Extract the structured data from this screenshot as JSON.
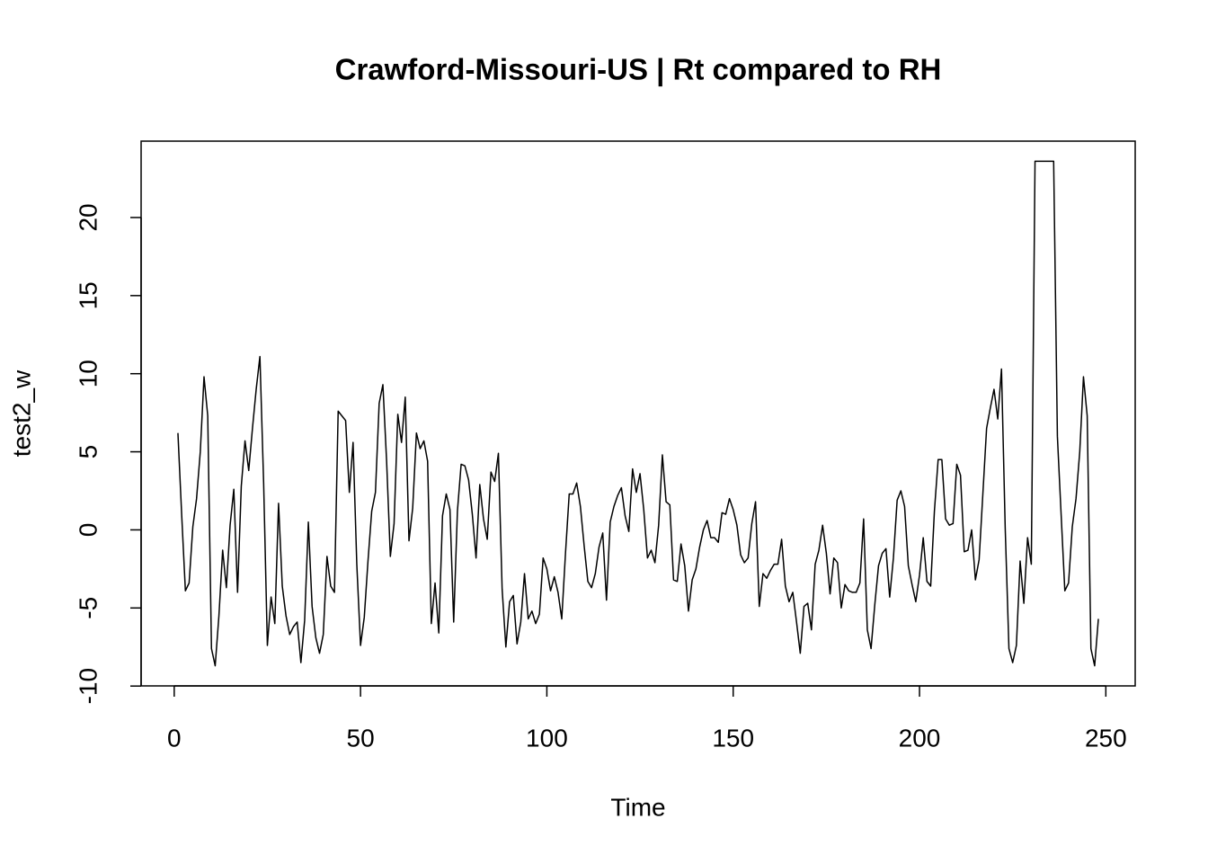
{
  "chart_data": {
    "type": "line",
    "title": "Crawford-Missouri-US | Rt compared to RH",
    "x_label": "Time",
    "y_label": "test2_w",
    "x": [
      1,
      2,
      3,
      4,
      5,
      6,
      7,
      8,
      9,
      10,
      11,
      12,
      13,
      14,
      15,
      16,
      17,
      18,
      19,
      20,
      21,
      22,
      23,
      24,
      25,
      26,
      27,
      28,
      29,
      30,
      31,
      32,
      33,
      34,
      35,
      36,
      37,
      38,
      39,
      40,
      41,
      42,
      43,
      44,
      45,
      46,
      47,
      48,
      49,
      50,
      51,
      52,
      53,
      54,
      55,
      56,
      57,
      58,
      59,
      60,
      61,
      62,
      63,
      64,
      65,
      66,
      67,
      68,
      69,
      70,
      71,
      72,
      73,
      74,
      75,
      76,
      77,
      78,
      79,
      80,
      81,
      82,
      83,
      84,
      85,
      86,
      87,
      88,
      89,
      90,
      91,
      92,
      93,
      94,
      95,
      96,
      97,
      98,
      99,
      100,
      101,
      102,
      103,
      104,
      105,
      106,
      107,
      108,
      109,
      110,
      111,
      112,
      113,
      114,
      115,
      116,
      117,
      118,
      119,
      120,
      121,
      122,
      123,
      124,
      125,
      126,
      127,
      128,
      129,
      130,
      131,
      132,
      133,
      134,
      135,
      136,
      137,
      138,
      139,
      140,
      141,
      142,
      143,
      144,
      145,
      146,
      147,
      148,
      149,
      150,
      151,
      152,
      153,
      154,
      155,
      156,
      157,
      158,
      159,
      160,
      161,
      162,
      163,
      164,
      165,
      166,
      167,
      168,
      169,
      170,
      171,
      172,
      173,
      174,
      175,
      176,
      177,
      178,
      179,
      180,
      181,
      182,
      183,
      184,
      185,
      186,
      187,
      188,
      189,
      190,
      191,
      192,
      193,
      194,
      195,
      196,
      197,
      198,
      199,
      200,
      201,
      202,
      203,
      204,
      205,
      206,
      207,
      208,
      209,
      210,
      211,
      212,
      213,
      214,
      215,
      216,
      217,
      218,
      219,
      220,
      221,
      222,
      223,
      224,
      225,
      226,
      227,
      228,
      229,
      230,
      231,
      232,
      233,
      234,
      235,
      236,
      237,
      238,
      239,
      240,
      241,
      242,
      243,
      244,
      245,
      246,
      247,
      248
    ],
    "series": [
      {
        "name": "test2_w",
        "color": "#000000",
        "values": [
          6.2,
          1,
          -3.9,
          -3.4,
          0.2,
          2,
          5,
          9.8,
          7.3,
          -7.6,
          -8.7,
          -5.5,
          -1.3,
          -3.7,
          0.3,
          2.6,
          -4,
          2.8,
          5.7,
          3.8,
          6.5,
          9,
          11.1,
          3,
          -7.4,
          -4.3,
          -6,
          1.7,
          -3.6,
          -5.5,
          -6.7,
          -6.2,
          -5.9,
          -8.5,
          -5.8,
          0.5,
          -4.9,
          -6.9,
          -7.9,
          -6.7,
          -1.7,
          -3.6,
          -4,
          7.6,
          7.3,
          7,
          2.4,
          5.6,
          -2.2,
          -7.4,
          -5.6,
          -2,
          1.2,
          2.4,
          8.1,
          9.3,
          4.4,
          -1.7,
          0.4,
          7.4,
          5.6,
          8.5,
          -0.7,
          1.4,
          6.2,
          5.2,
          5.7,
          4.4,
          -6,
          -3.4,
          -6.6,
          0.9,
          2.3,
          1.3,
          -5.9,
          1.2,
          4.2,
          4.1,
          3.2,
          1,
          -1.8,
          2.9,
          0.7,
          -0.6,
          3.7,
          3.1,
          4.9,
          -3.8,
          -7.5,
          -4.6,
          -4.2,
          -7.3,
          -5.9,
          -2.8,
          -5.7,
          -5.2,
          -6,
          -5.4,
          -1.8,
          -2.5,
          -3.9,
          -3,
          -4,
          -5.7,
          -1.5,
          2.3,
          2.3,
          3,
          1.5,
          -1,
          -3.3,
          -3.7,
          -2.8,
          -1.1,
          -0.2,
          -4.5,
          0.5,
          1.5,
          2.2,
          2.7,
          0.9,
          -0.1,
          3.9,
          2.4,
          3.6,
          1.3,
          -1.8,
          -1.3,
          -2.1,
          0.3,
          4.8,
          1.8,
          1.6,
          -3.2,
          -3.3,
          -0.9,
          -2.3,
          -5.2,
          -3.2,
          -2.5,
          -1.1,
          0,
          0.6,
          -0.5,
          -0.5,
          -0.8,
          1.1,
          1,
          2,
          1.3,
          0.3,
          -1.6,
          -2.1,
          -1.8,
          0.4,
          1.8,
          -4.9,
          -2.8,
          -3.1,
          -2.6,
          -2.2,
          -2.2,
          -0.6,
          -3.6,
          -4.6,
          -4,
          -5.9,
          -7.9,
          -4.9,
          -4.7,
          -6.4,
          -2.2,
          -1.3,
          0.3,
          -1.5,
          -4.1,
          -1.8,
          -2.1,
          -5,
          -3.5,
          -3.9,
          -4,
          -4,
          -3.4,
          0.7,
          -6.4,
          -7.6,
          -4.8,
          -2.3,
          -1.5,
          -1.2,
          -4.3,
          -1.8,
          1.9,
          2.5,
          1.5,
          -2.3,
          -3.5,
          -4.6,
          -2.9,
          -0.5,
          -3.3,
          -3.6,
          1.2,
          4.5,
          4.5,
          0.7,
          0.3,
          0.4,
          4.2,
          3.5,
          -1.4,
          -1.3,
          0,
          -3.2,
          -1.9,
          2.3,
          6.5,
          7.8,
          9,
          7.1,
          10.3,
          0.1,
          -7.6,
          -8.5,
          -7.4,
          -2,
          -4.7,
          -0.5,
          -2.2,
          23.6,
          23.6,
          23.6,
          23.6,
          23.6,
          23.6,
          6,
          1,
          -3.9,
          -3.4,
          0.2,
          2,
          5,
          9.8,
          7.3,
          -7.6,
          -8.7,
          -5.7
        ]
      }
    ],
    "xlim": [
      -8.88,
      257.88
    ],
    "ylim": [
      -9.99,
      24.89
    ],
    "xticks": [
      0,
      50,
      100,
      150,
      200,
      250
    ],
    "yticks": [
      -10,
      -5,
      0,
      5,
      10,
      15,
      20
    ],
    "grid": false
  }
}
